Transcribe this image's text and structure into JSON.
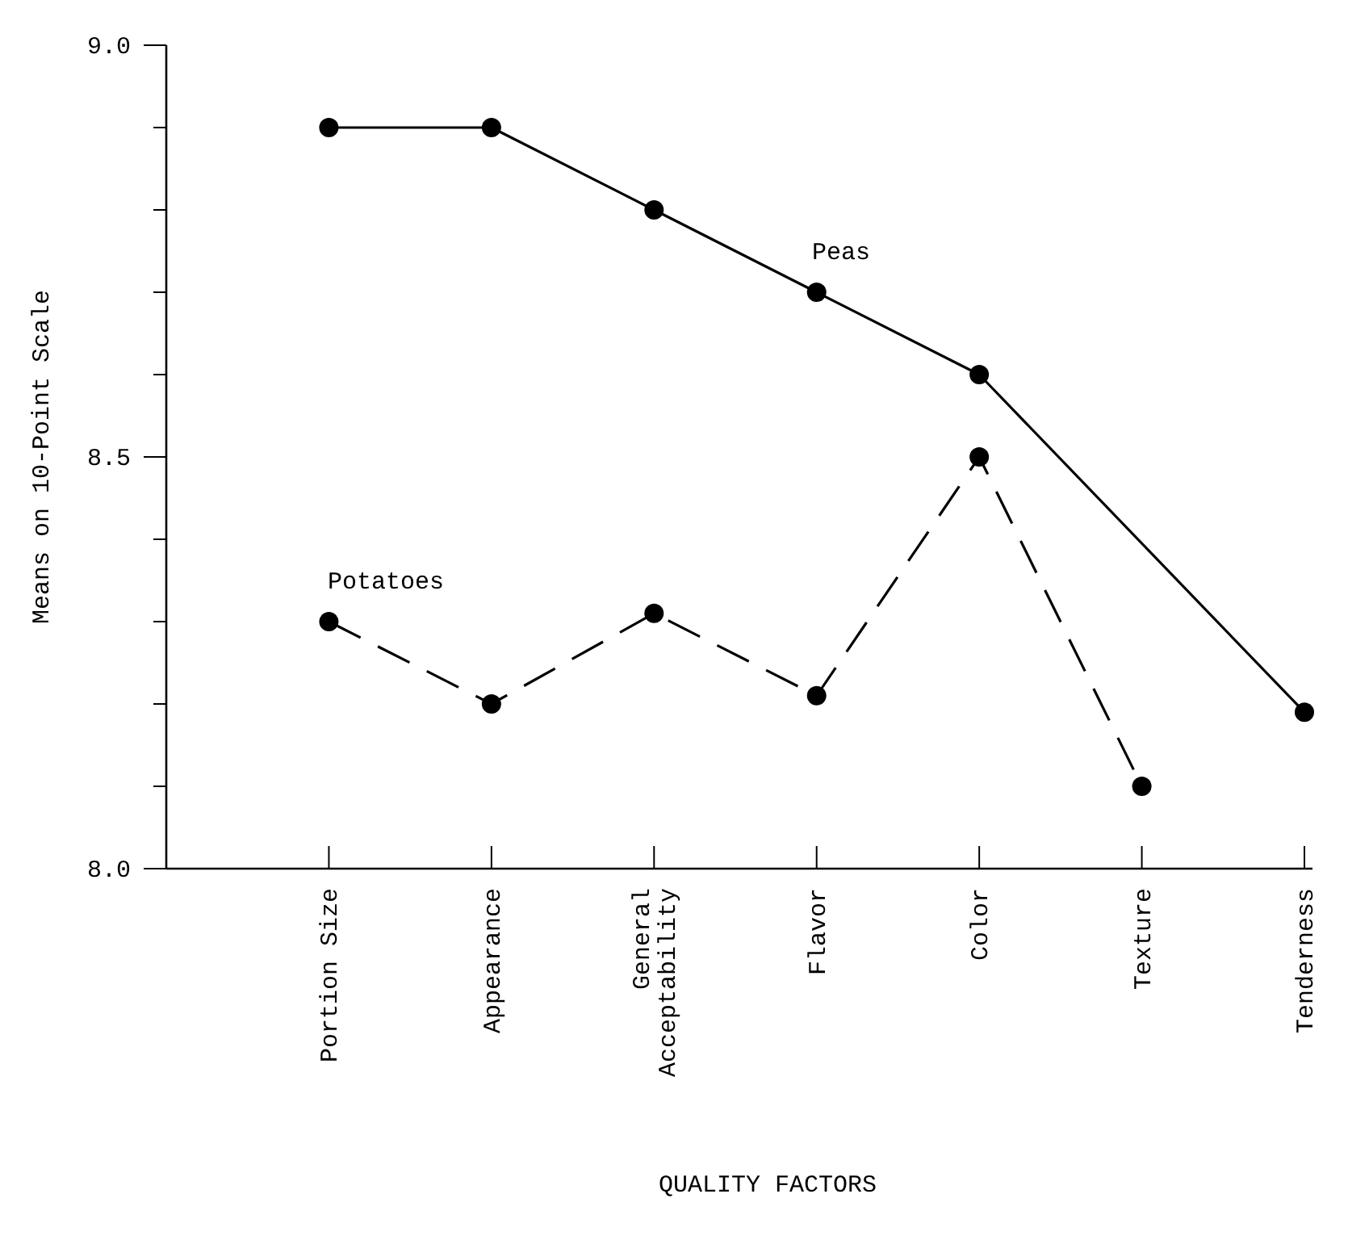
{
  "chart_data": {
    "type": "line",
    "xlabel": "QUALITY FACTORS",
    "ylabel": "Means on 10-Point Scale",
    "categories": [
      "Portion Size",
      "Appearance",
      "General Acceptability",
      "Flavor",
      "Color",
      "Texture",
      "Tenderness"
    ],
    "ylim": [
      8.0,
      9.0
    ],
    "yticks": [
      {
        "value": 8.0,
        "label": "8.0"
      },
      {
        "value": 8.1,
        "label": null
      },
      {
        "value": 8.2,
        "label": null
      },
      {
        "value": 8.3,
        "label": null
      },
      {
        "value": 8.4,
        "label": null
      },
      8.5,
      {
        "value": 8.6,
        "label": null
      },
      {
        "value": 8.7,
        "label": null
      },
      {
        "value": 8.8,
        "label": null
      },
      {
        "value": 8.9,
        "label": null
      },
      {
        "value": 9.0,
        "label": "9.0"
      }
    ],
    "grid": false,
    "marker": "circle",
    "series": [
      {
        "name": "Peas",
        "color": "#000000",
        "line_style": "solid",
        "values": [
          8.9,
          8.9,
          8.8,
          8.7,
          8.6,
          null,
          8.19
        ]
      },
      {
        "name": "Potatoes",
        "color": "#000000",
        "line_style": "dashed",
        "values": [
          8.3,
          8.2,
          8.31,
          8.21,
          8.5,
          8.1,
          null
        ]
      }
    ]
  }
}
